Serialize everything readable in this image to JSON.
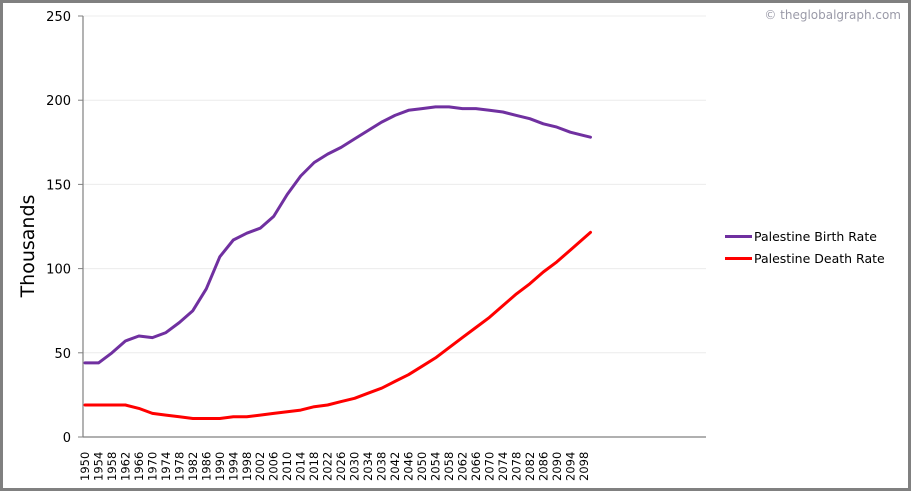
{
  "copyright": "© theglobalgraph.com",
  "chart_data": {
    "type": "line",
    "title": "",
    "xlabel": "",
    "ylabel": "Thousands",
    "ylim": [
      0,
      250
    ],
    "yticks": [
      0,
      50,
      100,
      150,
      200,
      250
    ],
    "grid": true,
    "legend_position": "right",
    "x": [
      1950,
      1954,
      1958,
      1962,
      1966,
      1970,
      1974,
      1978,
      1982,
      1986,
      1990,
      1994,
      1998,
      2002,
      2006,
      2010,
      2014,
      2018,
      2022,
      2026,
      2030,
      2034,
      2038,
      2042,
      2046,
      2050,
      2054,
      2058,
      2062,
      2066,
      2070,
      2074,
      2078,
      2082,
      2086,
      2090,
      2094,
      2098
    ],
    "series": [
      {
        "name": "Palestine Birth Rate",
        "color": "#7030a0",
        "values": [
          44,
          44,
          50,
          57,
          60,
          59,
          62,
          68,
          75,
          88,
          107,
          117,
          121,
          124,
          131,
          144,
          155,
          163,
          168,
          172,
          177,
          182,
          187,
          191,
          194,
          195,
          196,
          196,
          195,
          195,
          194,
          193,
          191,
          189,
          186,
          184,
          181,
          179
        ]
      },
      {
        "name": "Palestine Death Rate",
        "color": "#ff0000",
        "values": [
          19,
          19,
          19,
          19,
          17,
          14,
          13,
          12,
          11,
          11,
          11,
          12,
          12,
          13,
          14,
          15,
          16,
          18,
          19,
          21,
          23,
          26,
          29,
          33,
          37,
          42,
          47,
          53,
          59,
          65,
          71,
          78,
          85,
          91,
          98,
          104,
          111,
          118
        ]
      }
    ]
  }
}
